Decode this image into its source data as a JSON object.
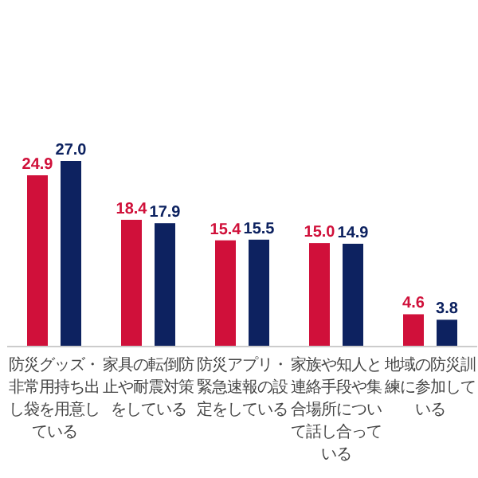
{
  "chart_data": {
    "type": "bar",
    "categories": [
      "防災グッズ・非常用持ち出し袋を用意している",
      "家具の転倒防止や耐震対策をしている",
      "防災アプリ・緊急速報の設定をしている",
      "家族や知人と連絡手段や集合場所について話し合っている",
      "地域の防災訓練に参加している"
    ],
    "series": [
      {
        "color": "#d0103a",
        "values": [
          24.9,
          18.4,
          15.4,
          15.0,
          4.6
        ],
        "value_labels": [
          "24.9",
          "18.4",
          "15.4",
          "15.0",
          "4.6"
        ]
      },
      {
        "color": "#0d2260",
        "values": [
          27.0,
          17.9,
          15.5,
          14.9,
          3.8
        ],
        "value_labels": [
          "27.0",
          "17.9",
          "15.5",
          "14.9",
          "3.8"
        ]
      }
    ]
  }
}
